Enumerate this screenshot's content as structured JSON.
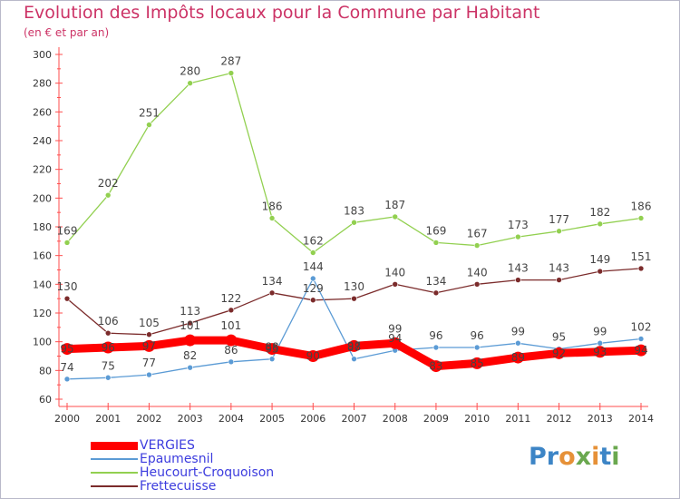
{
  "title": "Evolution des Impôts locaux pour la Commune par Habitant",
  "subtitle": "(en € et par an)",
  "brand": "Proxiti",
  "chart_data": {
    "type": "line",
    "title": "Evolution des Impôts locaux pour la Commune par Habitant",
    "subtitle": "(en € et par an)",
    "x": [
      "2000",
      "2001",
      "2002",
      "2003",
      "2004",
      "2005",
      "2006",
      "2007",
      "2008",
      "2009",
      "2010",
      "2011",
      "2012",
      "2013",
      "2014"
    ],
    "ylim": [
      60,
      300
    ],
    "yticks": [
      60,
      80,
      100,
      120,
      140,
      160,
      180,
      200,
      220,
      240,
      260,
      280,
      300
    ],
    "grid": false,
    "legend_position": "bottom-left",
    "series": [
      {
        "name": "VERGIES",
        "color": "#ff0000",
        "values": [
          95,
          96,
          97,
          101,
          101,
          95,
          90,
          97,
          99,
          83,
          85,
          89,
          92,
          93,
          94
        ]
      },
      {
        "name": "Epaumesnil",
        "color": "#5b9bd5",
        "values": [
          74,
          75,
          77,
          82,
          86,
          88,
          144,
          88,
          94,
          96,
          96,
          99,
          95,
          99,
          102
        ]
      },
      {
        "name": "Heucourt-Croquoison",
        "color": "#92d050",
        "values": [
          169,
          202,
          251,
          280,
          287,
          186,
          162,
          183,
          187,
          169,
          167,
          173,
          177,
          182,
          186
        ]
      },
      {
        "name": "Frettecuisse",
        "color": "#7b2b2b",
        "values": [
          130,
          106,
          105,
          113,
          122,
          134,
          129,
          130,
          140,
          134,
          140,
          143,
          143,
          149,
          151
        ]
      }
    ]
  }
}
